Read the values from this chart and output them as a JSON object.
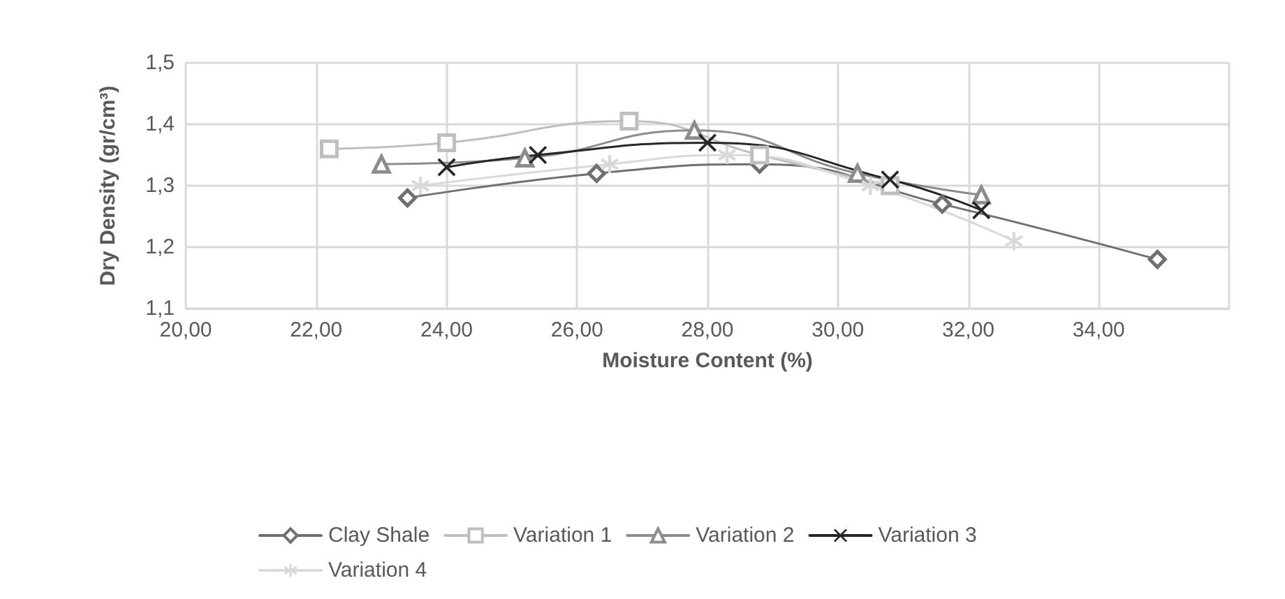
{
  "chart_data": {
    "type": "line",
    "xlabel": "Moisture Content (%)",
    "ylabel": "Dry Density (gr/cm³)",
    "xlim": [
      20,
      36
    ],
    "xticks": [
      {
        "value": 20,
        "label": "20,00"
      },
      {
        "value": 22,
        "label": "22,00"
      },
      {
        "value": 24,
        "label": "24,00"
      },
      {
        "value": 26,
        "label": "26,00"
      },
      {
        "value": 28,
        "label": "28,00"
      },
      {
        "value": 30,
        "label": "30,00"
      },
      {
        "value": 32,
        "label": "32,00"
      },
      {
        "value": 34,
        "label": "34,00"
      },
      {
        "value": 36,
        "label": null
      }
    ],
    "ylim": [
      1.1,
      1.5
    ],
    "yticks": [
      {
        "value": 1.1,
        "label": "1,1"
      },
      {
        "value": 1.2,
        "label": "1,2"
      },
      {
        "value": 1.3,
        "label": "1,3"
      },
      {
        "value": 1.4,
        "label": "1,4"
      },
      {
        "value": 1.5,
        "label": "1,5"
      }
    ],
    "grid": true,
    "legend": "bottom",
    "series": [
      {
        "name": "Clay Shale",
        "color": "#707070",
        "marker": "diamond",
        "x": [
          23.4,
          26.3,
          28.8,
          31.6,
          34.9
        ],
        "values": [
          1.28,
          1.32,
          1.335,
          1.27,
          1.18
        ]
      },
      {
        "name": "Variation 1",
        "color": "#bfbfbf",
        "marker": "square",
        "x": [
          22.2,
          24.0,
          26.8,
          28.8,
          30.8
        ],
        "values": [
          1.36,
          1.37,
          1.405,
          1.35,
          1.3
        ]
      },
      {
        "name": "Variation 2",
        "color": "#8c8c8c",
        "marker": "triangle",
        "x": [
          23.0,
          25.2,
          27.8,
          30.3,
          32.2
        ],
        "values": [
          1.335,
          1.345,
          1.39,
          1.32,
          1.285
        ]
      },
      {
        "name": "Variation 3",
        "color": "#262626",
        "marker": "cross",
        "x": [
          24.0,
          25.4,
          28.0,
          30.8,
          32.2
        ],
        "values": [
          1.33,
          1.35,
          1.37,
          1.31,
          1.26
        ]
      },
      {
        "name": "Variation 4",
        "color": "#d9d9d9",
        "marker": "star",
        "x": [
          23.6,
          26.5,
          28.3,
          30.5,
          32.7
        ],
        "values": [
          1.3,
          1.335,
          1.35,
          1.3,
          1.21
        ]
      }
    ]
  }
}
